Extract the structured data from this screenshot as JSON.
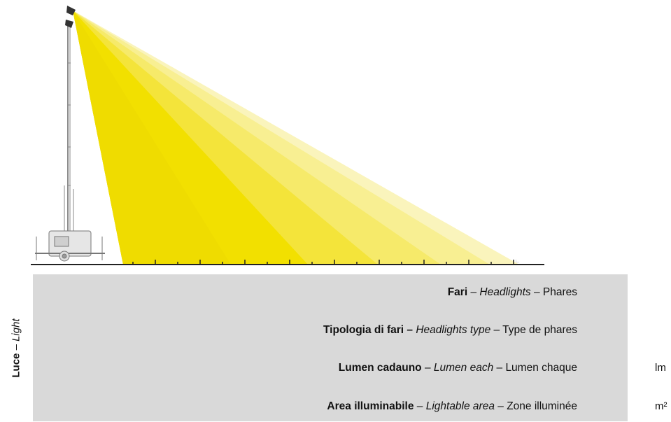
{
  "side_label": {
    "bold": "Luce",
    "sep": " – ",
    "italic": "Light"
  },
  "rows": [
    {
      "bold": "Fari",
      "sep1": " – ",
      "italic": "Headlights",
      "sep2": " – ",
      "plain": "Phares"
    },
    {
      "bold": "Tipologia di fari –",
      "sep1": " ",
      "italic": "Headlights type",
      "sep2": " – ",
      "plain": "Type de phares"
    },
    {
      "bold": "Lumen cadauno",
      "sep1": " – ",
      "italic": "Lumen each",
      "sep2": " – ",
      "plain": "Lumen chaque"
    },
    {
      "bold": "Area illuminabile",
      "sep1": " – ",
      "italic": "Lightable area",
      "sep2": " – ",
      "plain": "Zone illuminée"
    }
  ],
  "units": {
    "lumen": "lm",
    "area": "m²"
  },
  "colors": {
    "beam_1": "#f2e200",
    "beam_2": "#f4e43a",
    "beam_3": "#f6ea6a",
    "beam_4": "#f8ef92",
    "beam_5": "#faf4bc",
    "table_bg": "#d9d9d9",
    "tower": "#9a9a9a"
  }
}
